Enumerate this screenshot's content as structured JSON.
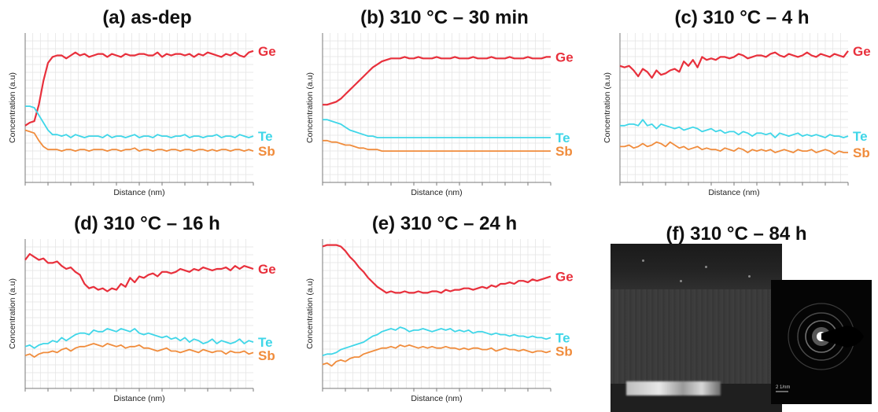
{
  "chart_data": [
    {
      "type": "line",
      "title": "(a) as-dep",
      "xlabel": "Distance (nm)",
      "ylabel": "Concentration (a.u)",
      "grid": true,
      "ylim": [
        0,
        100
      ],
      "x": [
        0,
        1,
        2,
        3,
        4,
        5,
        6,
        7,
        8,
        9,
        10,
        11,
        12,
        13,
        14,
        15,
        16,
        17,
        18,
        19,
        20,
        21,
        22,
        23,
        24,
        25,
        26,
        27,
        28,
        29,
        30,
        31,
        32,
        33,
        34,
        35,
        36,
        37,
        38,
        39,
        40,
        41,
        42,
        43,
        44,
        45,
        46,
        47,
        48,
        49,
        50
      ],
      "series": [
        {
          "name": "Ge",
          "color": "#e8303c",
          "values": [
            38,
            40,
            41,
            52,
            68,
            80,
            84,
            85,
            85,
            83,
            85,
            87,
            85,
            86,
            84,
            85,
            86,
            86,
            84,
            86,
            85,
            84,
            86,
            85,
            85,
            86,
            86,
            85,
            85,
            87,
            84,
            86,
            85,
            86,
            86,
            85,
            86,
            84,
            86,
            85,
            87,
            86,
            85,
            84,
            86,
            85,
            87,
            85,
            84,
            87,
            88
          ]
        },
        {
          "name": "Te",
          "color": "#3fd6e8",
          "values": [
            51,
            51,
            50,
            45,
            40,
            35,
            32,
            32,
            31,
            32,
            30,
            32,
            31,
            30,
            31,
            31,
            31,
            30,
            32,
            30,
            31,
            31,
            30,
            31,
            32,
            30,
            31,
            31,
            30,
            32,
            31,
            31,
            30,
            31,
            31,
            32,
            30,
            31,
            31,
            30,
            31,
            31,
            32,
            30,
            31,
            31,
            30,
            32,
            31,
            30,
            31
          ]
        },
        {
          "name": "Sb",
          "color": "#f08c3c",
          "values": [
            35,
            34,
            33,
            28,
            24,
            22,
            22,
            22,
            21,
            22,
            22,
            21,
            22,
            22,
            21,
            22,
            22,
            22,
            21,
            22,
            22,
            21,
            22,
            22,
            23,
            21,
            22,
            22,
            21,
            22,
            22,
            21,
            22,
            22,
            21,
            22,
            22,
            21,
            22,
            22,
            21,
            22,
            21,
            22,
            22,
            21,
            22,
            22,
            21,
            22,
            21
          ]
        }
      ]
    },
    {
      "type": "line",
      "title": "(b) 310 °C – 30 min",
      "xlabel": "Distance (nm)",
      "ylabel": "Concentration (a.u)",
      "grid": true,
      "ylim": [
        0,
        100
      ],
      "x": [
        0,
        1,
        2,
        3,
        4,
        5,
        6,
        7,
        8,
        9,
        10,
        11,
        12,
        13,
        14,
        15,
        16,
        17,
        18,
        19,
        20,
        21,
        22,
        23,
        24,
        25,
        26,
        27,
        28,
        29,
        30,
        31,
        32,
        33,
        34,
        35,
        36,
        37,
        38,
        39,
        40,
        41,
        42,
        43,
        44,
        45,
        46,
        47,
        48,
        49,
        50
      ],
      "series": [
        {
          "name": "Ge",
          "color": "#e8303c",
          "values": [
            52,
            52,
            53,
            54,
            56,
            59,
            62,
            65,
            68,
            71,
            74,
            77,
            79,
            81,
            82,
            83,
            83,
            83,
            84,
            83,
            83,
            84,
            83,
            83,
            83,
            84,
            83,
            83,
            83,
            84,
            83,
            83,
            83,
            84,
            83,
            83,
            83,
            84,
            83,
            83,
            83,
            84,
            83,
            83,
            83,
            84,
            83,
            83,
            83,
            84,
            84
          ]
        },
        {
          "name": "Te",
          "color": "#3fd6e8",
          "values": [
            42,
            42,
            41,
            40,
            39,
            37,
            35,
            34,
            33,
            32,
            31,
            31,
            30,
            30,
            30,
            30,
            30,
            30,
            30,
            30,
            30,
            30,
            30,
            30,
            30,
            30,
            30,
            30,
            30,
            30,
            30,
            30,
            30,
            30,
            30,
            30,
            30,
            30,
            30,
            30,
            30,
            30,
            30,
            30,
            30,
            30,
            30,
            30,
            30,
            30,
            30
          ]
        },
        {
          "name": "Sb",
          "color": "#f08c3c",
          "values": [
            28,
            28,
            27,
            27,
            26,
            25,
            25,
            24,
            23,
            23,
            22,
            22,
            22,
            21,
            21,
            21,
            21,
            21,
            21,
            21,
            21,
            21,
            21,
            21,
            21,
            21,
            21,
            21,
            21,
            21,
            21,
            21,
            21,
            21,
            21,
            21,
            21,
            21,
            21,
            21,
            21,
            21,
            21,
            21,
            21,
            21,
            21,
            21,
            21,
            21,
            21
          ]
        }
      ]
    },
    {
      "type": "line",
      "title": "(c) 310 °C – 4 h",
      "xlabel": "Distance (nm)",
      "ylabel": "Concentration (a.u)",
      "grid": true,
      "ylim": [
        0,
        100
      ],
      "x": [
        0,
        1,
        2,
        3,
        4,
        5,
        6,
        7,
        8,
        9,
        10,
        11,
        12,
        13,
        14,
        15,
        16,
        17,
        18,
        19,
        20,
        21,
        22,
        23,
        24,
        25,
        26,
        27,
        28,
        29,
        30,
        31,
        32,
        33,
        34,
        35,
        36,
        37,
        38,
        39,
        40,
        41,
        42,
        43,
        44,
        45,
        46,
        47,
        48,
        49,
        50
      ],
      "series": [
        {
          "name": "Ge",
          "color": "#e8303c",
          "values": [
            78,
            77,
            78,
            75,
            71,
            76,
            74,
            70,
            75,
            72,
            73,
            75,
            76,
            74,
            81,
            78,
            82,
            77,
            84,
            82,
            83,
            82,
            84,
            84,
            83,
            84,
            86,
            85,
            83,
            84,
            85,
            85,
            84,
            86,
            87,
            85,
            84,
            86,
            85,
            84,
            85,
            87,
            85,
            84,
            86,
            85,
            84,
            86,
            85,
            84,
            88
          ]
        },
        {
          "name": "Te",
          "color": "#3fd6e8",
          "values": [
            38,
            38,
            39,
            39,
            38,
            42,
            38,
            39,
            36,
            39,
            38,
            37,
            36,
            37,
            35,
            36,
            37,
            36,
            34,
            35,
            36,
            34,
            35,
            33,
            34,
            34,
            32,
            34,
            33,
            31,
            33,
            33,
            32,
            33,
            30,
            33,
            32,
            31,
            32,
            33,
            31,
            32,
            31,
            32,
            31,
            30,
            32,
            31,
            31,
            30,
            31
          ]
        },
        {
          "name": "Sb",
          "color": "#f08c3c",
          "values": [
            24,
            24,
            25,
            23,
            24,
            26,
            24,
            25,
            27,
            26,
            24,
            27,
            25,
            23,
            24,
            22,
            23,
            24,
            22,
            23,
            22,
            22,
            21,
            23,
            22,
            21,
            23,
            22,
            20,
            22,
            21,
            22,
            21,
            22,
            20,
            21,
            22,
            21,
            20,
            22,
            21,
            21,
            22,
            20,
            21,
            22,
            21,
            19,
            21,
            20,
            20
          ]
        }
      ]
    },
    {
      "type": "line",
      "title": "(d) 310 °C – 16 h",
      "xlabel": "Distance (nm)",
      "ylabel": "Concentration (a.u)",
      "grid": true,
      "ylim": [
        0,
        100
      ],
      "x": [
        0,
        1,
        2,
        3,
        4,
        5,
        6,
        7,
        8,
        9,
        10,
        11,
        12,
        13,
        14,
        15,
        16,
        17,
        18,
        19,
        20,
        21,
        22,
        23,
        24,
        25,
        26,
        27,
        28,
        29,
        30,
        31,
        32,
        33,
        34,
        35,
        36,
        37,
        38,
        39,
        40,
        41,
        42,
        43,
        44,
        45,
        46,
        47,
        48,
        49,
        50
      ],
      "series": [
        {
          "name": "Ge",
          "color": "#e8303c",
          "values": [
            86,
            90,
            88,
            86,
            87,
            84,
            84,
            85,
            82,
            80,
            81,
            78,
            76,
            70,
            67,
            68,
            66,
            67,
            65,
            67,
            66,
            70,
            68,
            74,
            71,
            75,
            74,
            76,
            77,
            75,
            78,
            78,
            77,
            78,
            80,
            79,
            78,
            80,
            79,
            81,
            80,
            79,
            80,
            80,
            81,
            79,
            82,
            80,
            82,
            81,
            80
          ]
        },
        {
          "name": "Te",
          "color": "#3fd6e8",
          "values": [
            28,
            29,
            27,
            29,
            30,
            30,
            32,
            31,
            34,
            32,
            34,
            36,
            37,
            37,
            36,
            39,
            38,
            38,
            40,
            39,
            38,
            40,
            39,
            38,
            40,
            37,
            36,
            37,
            36,
            35,
            34,
            35,
            33,
            34,
            32,
            34,
            31,
            33,
            32,
            30,
            31,
            33,
            30,
            32,
            31,
            30,
            31,
            33,
            30,
            32,
            31
          ]
        },
        {
          "name": "Sb",
          "color": "#f08c3c",
          "values": [
            22,
            23,
            21,
            23,
            24,
            24,
            25,
            24,
            26,
            27,
            25,
            27,
            28,
            28,
            29,
            30,
            29,
            28,
            30,
            29,
            28,
            29,
            27,
            28,
            28,
            29,
            27,
            27,
            26,
            25,
            26,
            27,
            25,
            25,
            24,
            25,
            26,
            25,
            24,
            26,
            25,
            24,
            25,
            25,
            23,
            25,
            24,
            24,
            25,
            23,
            24
          ]
        }
      ]
    },
    {
      "type": "line",
      "title": "(e) 310 °C – 24 h",
      "xlabel": "Distance (nm)",
      "ylabel": "Concentration (a.u)",
      "grid": true,
      "ylim": [
        0,
        100
      ],
      "x": [
        0,
        1,
        2,
        3,
        4,
        5,
        6,
        7,
        8,
        9,
        10,
        11,
        12,
        13,
        14,
        15,
        16,
        17,
        18,
        19,
        20,
        21,
        22,
        23,
        24,
        25,
        26,
        27,
        28,
        29,
        30,
        31,
        32,
        33,
        34,
        35,
        36,
        37,
        38,
        39,
        40,
        41,
        42,
        43,
        44,
        45,
        46,
        47,
        48,
        49,
        50
      ],
      "series": [
        {
          "name": "Ge",
          "color": "#e8303c",
          "values": [
            95,
            96,
            96,
            96,
            95,
            92,
            88,
            85,
            81,
            78,
            74,
            71,
            68,
            66,
            64,
            65,
            64,
            64,
            65,
            64,
            64,
            65,
            64,
            64,
            65,
            65,
            64,
            66,
            65,
            66,
            66,
            67,
            67,
            66,
            67,
            68,
            67,
            69,
            68,
            70,
            70,
            71,
            70,
            72,
            72,
            71,
            73,
            72,
            73,
            74,
            75
          ]
        },
        {
          "name": "Te",
          "color": "#3fd6e8",
          "values": [
            22,
            23,
            23,
            24,
            26,
            27,
            28,
            29,
            30,
            31,
            33,
            35,
            36,
            38,
            39,
            40,
            39,
            41,
            40,
            38,
            39,
            39,
            40,
            39,
            38,
            39,
            40,
            39,
            40,
            38,
            39,
            38,
            39,
            37,
            38,
            38,
            37,
            36,
            37,
            36,
            36,
            35,
            36,
            35,
            35,
            34,
            35,
            34,
            34,
            33,
            34
          ]
        },
        {
          "name": "Sb",
          "color": "#f08c3c",
          "values": [
            16,
            17,
            15,
            18,
            19,
            18,
            20,
            21,
            21,
            23,
            24,
            25,
            26,
            27,
            27,
            28,
            27,
            29,
            28,
            29,
            28,
            27,
            28,
            27,
            28,
            27,
            27,
            28,
            27,
            27,
            26,
            27,
            26,
            27,
            27,
            26,
            26,
            27,
            25,
            26,
            27,
            26,
            26,
            25,
            26,
            25,
            24,
            25,
            25,
            24,
            25
          ]
        }
      ]
    }
  ],
  "panel_f": {
    "title": "(f) 310 °C – 84 h",
    "saed_scale": "2 1/nm"
  }
}
